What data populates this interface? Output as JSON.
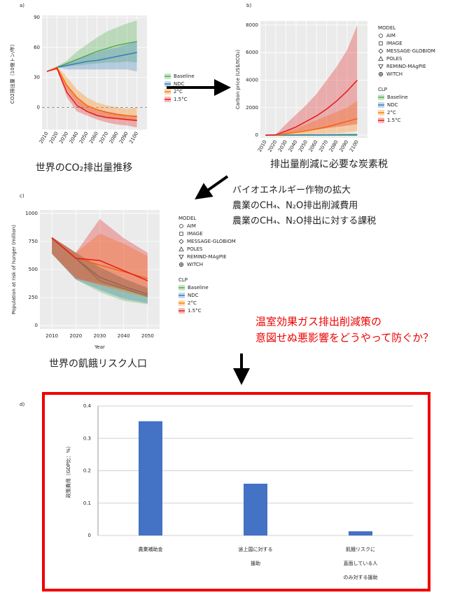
{
  "chart_data": [
    {
      "type": "line",
      "label": "a)",
      "caption": "世界のCO₂排出量推移",
      "ylabel": "CO2排出量（10億トン/年）",
      "x": [
        2010,
        2020,
        2030,
        2040,
        2050,
        2060,
        2070,
        2080,
        2090,
        2100
      ],
      "xlim": [
        2005,
        2110
      ],
      "xticks": [
        2010,
        2020,
        2030,
        2040,
        2050,
        2060,
        2070,
        2080,
        2090,
        2100
      ],
      "ylim": [
        -22,
        92
      ],
      "yticks": [
        0,
        30,
        60,
        90
      ],
      "hline": 0,
      "series": [
        {
          "name": "Baseline",
          "color": "#4daf4a",
          "values": [
            36,
            40,
            44,
            48,
            52,
            56,
            59,
            62,
            64,
            66
          ],
          "low": [
            36,
            40,
            41,
            42,
            43,
            44,
            45,
            45,
            46,
            45
          ],
          "high": [
            36,
            41,
            47,
            56,
            63,
            70,
            76,
            80,
            84,
            87
          ]
        },
        {
          "name": "NDC",
          "color": "#377eb8",
          "values": [
            36,
            40,
            42,
            44,
            46,
            47,
            49,
            51,
            53,
            55
          ],
          "low": [
            36,
            40,
            38,
            38,
            38,
            38,
            38,
            38,
            38,
            36
          ],
          "high": [
            36,
            41,
            44,
            48,
            52,
            55,
            58,
            60,
            63,
            66
          ]
        },
        {
          "name": "2°C",
          "color": "#ff7f00",
          "values": [
            36,
            40,
            22,
            10,
            2,
            -2,
            -5,
            -7,
            -8,
            -9
          ],
          "low": [
            36,
            39,
            18,
            4,
            -4,
            -8,
            -11,
            -12,
            -13,
            -14
          ],
          "high": [
            36,
            41,
            30,
            18,
            10,
            5,
            2,
            0,
            -1,
            0
          ]
        },
        {
          "name": "1.5°C",
          "color": "#e41a1c",
          "values": [
            36,
            39,
            15,
            2,
            -4,
            -8,
            -10,
            -11,
            -12,
            -13
          ],
          "low": [
            36,
            38,
            10,
            -4,
            -8,
            -12,
            -15,
            -17,
            -18,
            -20
          ],
          "high": [
            36,
            40,
            22,
            10,
            2,
            -2,
            -4,
            -6,
            -8,
            -8
          ]
        }
      ]
    },
    {
      "type": "line",
      "label": "b)",
      "caption": "排出量削減に必要な炭素税",
      "ylabel": "Carbon price (US$/tCO₂)",
      "x": [
        2010,
        2020,
        2030,
        2040,
        2050,
        2060,
        2070,
        2080,
        2090,
        2100
      ],
      "xlim": [
        2005,
        2110
      ],
      "xticks": [
        2010,
        2020,
        2030,
        2040,
        2050,
        2060,
        2070,
        2080,
        2090,
        2100
      ],
      "ylim": [
        -200,
        8300
      ],
      "yticks": [
        0,
        2000,
        4000,
        6000,
        8000
      ],
      "model_legend": {
        "title": "MODEL",
        "items": [
          "AIM",
          "IMAGE",
          "MESSAGE-GLOBIOM",
          "POLES",
          "REMIND-MAgPIE",
          "WITCH"
        ]
      },
      "legend_title": "CLP",
      "series": [
        {
          "name": "Baseline",
          "color": "#4daf4a",
          "values": [
            0,
            0,
            0,
            0,
            0,
            0,
            0,
            0,
            0,
            0
          ]
        },
        {
          "name": "NDC",
          "color": "#377eb8",
          "values": [
            0,
            5,
            10,
            15,
            20,
            25,
            30,
            35,
            40,
            45
          ]
        },
        {
          "name": "2°C",
          "color": "#ff7f00",
          "values": [
            0,
            10,
            100,
            200,
            300,
            450,
            600,
            800,
            1000,
            1200
          ],
          "low": [
            0,
            0,
            20,
            40,
            60,
            90,
            120,
            150,
            200,
            300
          ],
          "high": [
            0,
            20,
            300,
            500,
            800,
            1100,
            1400,
            1700,
            2000,
            2500
          ]
        },
        {
          "name": "1.5°C",
          "color": "#e41a1c",
          "values": [
            0,
            20,
            300,
            600,
            1000,
            1400,
            1900,
            2500,
            3200,
            4000
          ],
          "low": [
            0,
            5,
            100,
            200,
            300,
            400,
            500,
            600,
            700,
            800
          ],
          "high": [
            0,
            50,
            800,
            1500,
            2200,
            3000,
            4000,
            5000,
            6200,
            8000
          ]
        }
      ]
    },
    {
      "type": "line",
      "label": "c)",
      "caption": "世界の飢餓リスク人口",
      "ylabel": "Population at risk of hunger (million)",
      "xlabel": "Year",
      "x": [
        2010,
        2020,
        2030,
        2040,
        2050
      ],
      "xlim": [
        2005,
        2055
      ],
      "xticks": [
        2010,
        2020,
        2030,
        2040,
        2050
      ],
      "ylim": [
        -30,
        1030
      ],
      "yticks": [
        0,
        250,
        500,
        750,
        1000
      ],
      "model_legend": {
        "title": "MODEL",
        "items": [
          "AIM",
          "IMAGE",
          "MESSAGE-GLOBIOM",
          "POLES",
          "REMIND-MAgPIE",
          "WITCH"
        ]
      },
      "legend_title": "CLP",
      "series": [
        {
          "name": "Baseline",
          "color": "#4daf4a",
          "values": [
            780,
            600,
            400,
            330,
            260
          ],
          "low": [
            640,
            410,
            300,
            220,
            190
          ],
          "high": [
            790,
            650,
            520,
            420,
            330
          ]
        },
        {
          "name": "NDC",
          "color": "#377eb8",
          "values": [
            780,
            600,
            430,
            350,
            280
          ],
          "low": [
            640,
            410,
            320,
            240,
            200
          ],
          "high": [
            790,
            650,
            520,
            420,
            340
          ]
        },
        {
          "name": "2°C",
          "color": "#ff7f00",
          "values": [
            780,
            600,
            540,
            480,
            420
          ],
          "low": [
            640,
            420,
            360,
            300,
            250
          ],
          "high": [
            790,
            650,
            820,
            730,
            620
          ]
        },
        {
          "name": "1.5°C",
          "color": "#e41a1c",
          "values": [
            780,
            600,
            580,
            490,
            400
          ],
          "low": [
            640,
            420,
            370,
            320,
            260
          ],
          "high": [
            790,
            650,
            950,
            780,
            650
          ]
        }
      ]
    },
    {
      "type": "bar",
      "label": "d)",
      "ylabel": "政策費用（GDP比：%）",
      "categories": [
        "農業補助金",
        "途上国に対する\n援助",
        "飢餓リスクに\n直面している人\nのみ対する援助"
      ],
      "values": [
        0.353,
        0.16,
        0.013
      ],
      "color": "#4472c4",
      "ylim": [
        0,
        0.4
      ],
      "yticks": [
        0,
        0.1,
        0.2,
        0.3,
        0.4
      ],
      "grid": true
    }
  ],
  "annotations": {
    "measures": [
      "バイオエネルギー作物の拡大",
      "農業のCH₄、N₂O排出削減費用",
      "農業のCH₄、N₂O排出に対する課税"
    ],
    "question": [
      "温室効果ガス排出削減策の",
      "意図せぬ悪影響をどうやって防ぐか？"
    ]
  }
}
